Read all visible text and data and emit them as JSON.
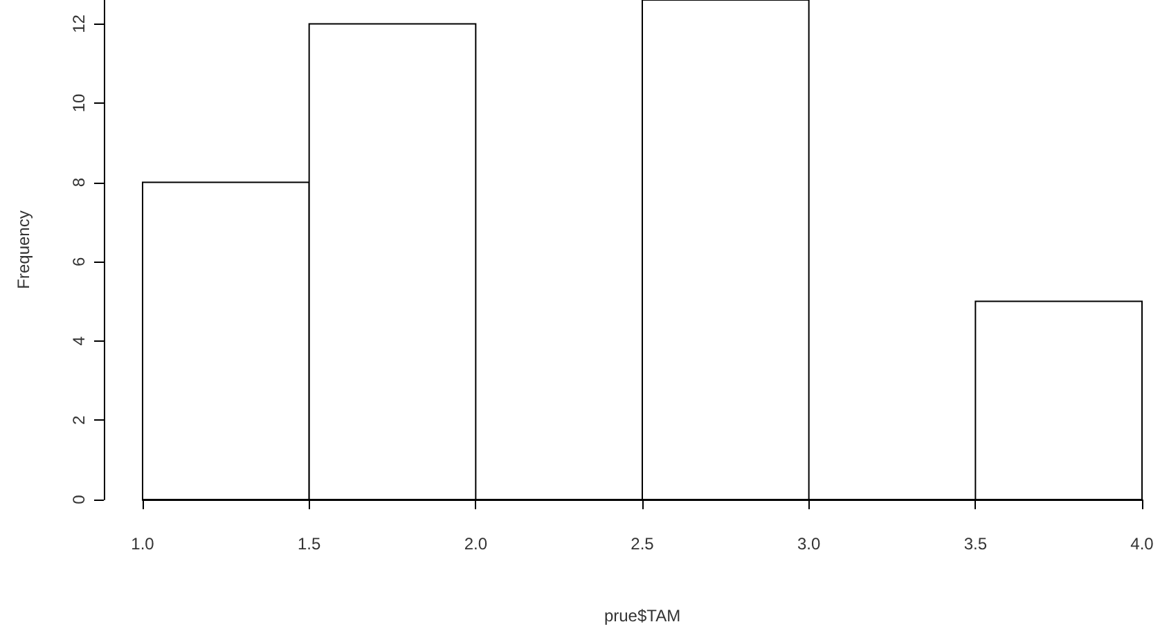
{
  "chart_data": {
    "type": "histogram",
    "xlabel": "prue$TAM",
    "ylabel": "Frequency",
    "bins": [
      1.0,
      1.5,
      2.0,
      2.5,
      3.0,
      3.5,
      4.0
    ],
    "values": [
      8,
      12,
      0,
      12.6,
      0,
      5
    ],
    "color": "#ffffff",
    "xlim": [
      1.0,
      4.0
    ],
    "ylim": [
      0,
      12.6
    ],
    "xticks": [
      {
        "value": 1,
        "label": "1.0"
      },
      {
        "value": 1.5,
        "label": "1.5"
      },
      {
        "value": 2,
        "label": "2.0"
      },
      {
        "value": 2.5,
        "label": "2.5"
      },
      {
        "value": 3,
        "label": "3.0"
      },
      {
        "value": 3.5,
        "label": "3.5"
      },
      {
        "value": 4,
        "label": "4.0"
      }
    ],
    "yticks": [
      0,
      2,
      4,
      6,
      8,
      10,
      12
    ],
    "grid": false
  }
}
